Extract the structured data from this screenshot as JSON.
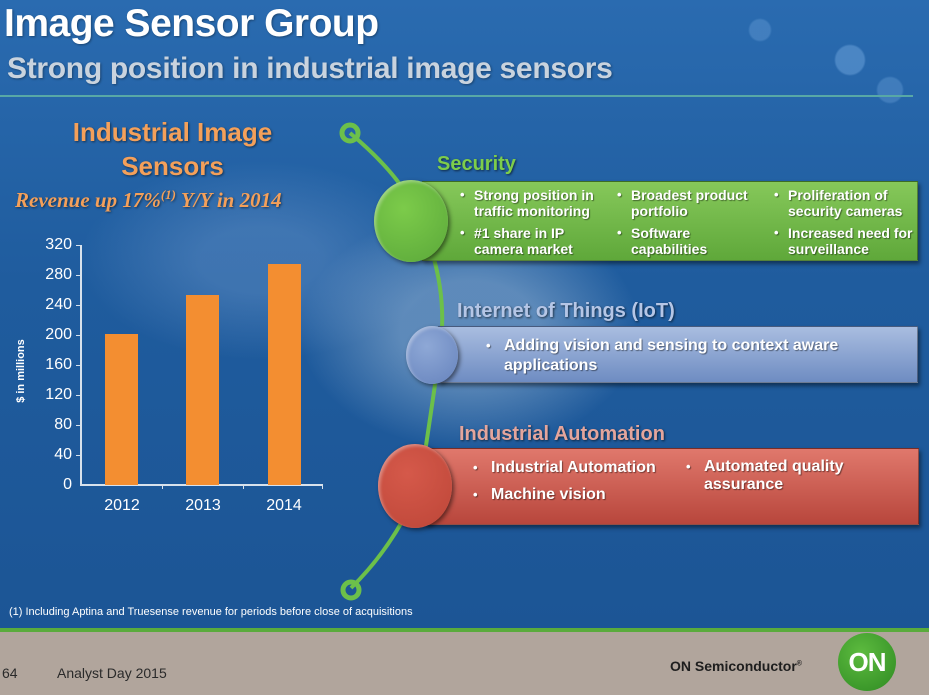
{
  "header": {
    "title": "Image Sensor Group",
    "subtitle": "Strong position in industrial image sensors"
  },
  "chart": {
    "title": "Industrial Image Sensors",
    "subtitle_pre": "Revenue up  17%",
    "subtitle_sup": "(1)",
    "subtitle_post": " Y/Y in 2014",
    "ylabel": "$ in millions",
    "y_ticks": [
      "320",
      "280",
      "240",
      "200",
      "160",
      "120",
      "80",
      "40",
      "0"
    ],
    "x_labels": [
      "2012",
      "2013",
      "2014"
    ],
    "bar_color": "#f38e31"
  },
  "chart_data": {
    "type": "bar",
    "title": "Industrial Image Sensors",
    "subtitle": "Revenue up 17%(1) Y/Y in 2014",
    "categories": [
      "2012",
      "2013",
      "2014"
    ],
    "values": [
      202,
      253,
      295
    ],
    "xlabel": "",
    "ylabel": "$ in millions",
    "ylim": [
      0,
      320
    ],
    "yticks": [
      0,
      40,
      80,
      120,
      160,
      200,
      240,
      280,
      320
    ],
    "grid": false,
    "legend": null
  },
  "segments": {
    "security": {
      "title": "Security",
      "color": "#6ab843",
      "bullets": [
        "Strong position in traffic monitoring",
        "#1 share in IP camera market",
        "Broadest product portfolio",
        "Software capabilities",
        "Proliferation of security cameras",
        "Increased need for surveillance"
      ]
    },
    "iot": {
      "title": "Internet of Things (IoT)",
      "color": "#7f9bcc",
      "bullets": [
        "Adding vision and sensing to context aware applications"
      ]
    },
    "automation": {
      "title": "Industrial Automation",
      "color": "#c9534a",
      "bullets": [
        "Industrial Automation",
        "Machine vision",
        "Automated quality assurance"
      ]
    }
  },
  "footnote": "(1) Including Aptina and Truesense revenue for periods before close of acquisitions",
  "footer": {
    "page_number": "64",
    "event": "Analyst Day 2015",
    "brand": "ON Semiconductor",
    "brand_mark": "®",
    "logo_text": "ON"
  }
}
